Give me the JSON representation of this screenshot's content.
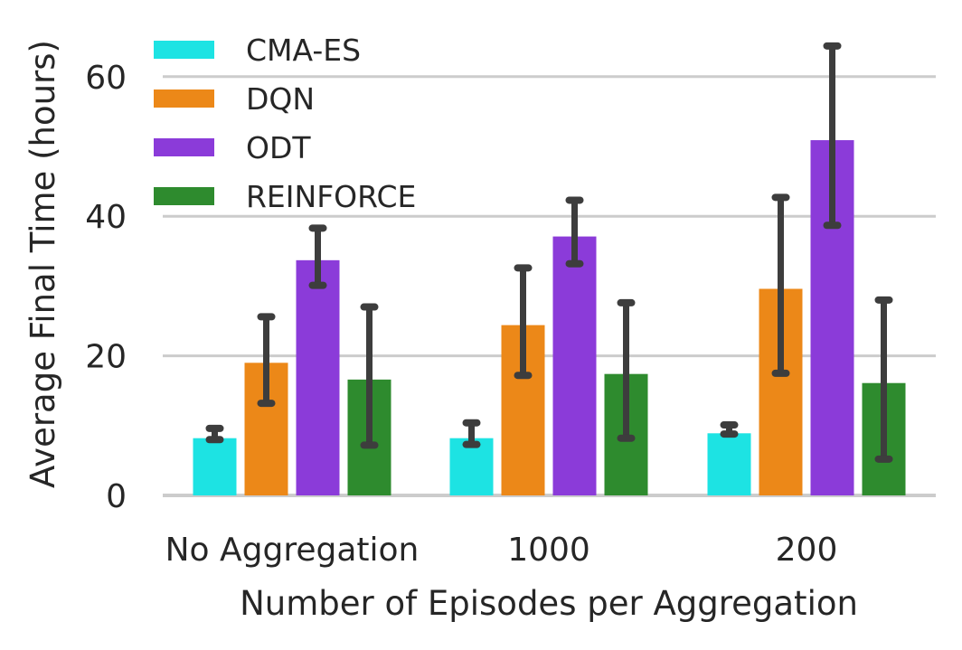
{
  "chart_data": {
    "type": "bar",
    "xlabel": "Number of Episodes per Aggregation",
    "ylabel": "Average Final Time (hours)",
    "categories": [
      "No Aggregation",
      "1000",
      "200"
    ],
    "ylim": [
      0,
      65
    ],
    "yticks": [
      0,
      20,
      40,
      60
    ],
    "grid": "horizontal",
    "legend_position": "top-left",
    "series": [
      {
        "name": "CMA-ES",
        "color": "#1de3e3",
        "values": [
          8.2,
          8.2,
          8.9
        ],
        "err_low": [
          8.0,
          7.3,
          8.8
        ],
        "err_high": [
          9.6,
          10.4,
          10.1
        ]
      },
      {
        "name": "DQN",
        "color": "#ec8818",
        "values": [
          19.0,
          24.4,
          29.6
        ],
        "err_low": [
          13.2,
          17.2,
          17.5
        ],
        "err_high": [
          25.6,
          32.6,
          42.7
        ]
      },
      {
        "name": "ODT",
        "color": "#8b3bd9",
        "values": [
          33.7,
          37.1,
          50.9
        ],
        "err_low": [
          30.1,
          33.2,
          38.7
        ],
        "err_high": [
          38.3,
          42.3,
          64.4
        ]
      },
      {
        "name": "REINFORCE",
        "color": "#2e8b2e",
        "values": [
          16.6,
          17.4,
          16.1
        ],
        "err_low": [
          7.2,
          8.2,
          5.2
        ],
        "err_high": [
          27.0,
          27.6,
          28.0
        ]
      }
    ]
  }
}
